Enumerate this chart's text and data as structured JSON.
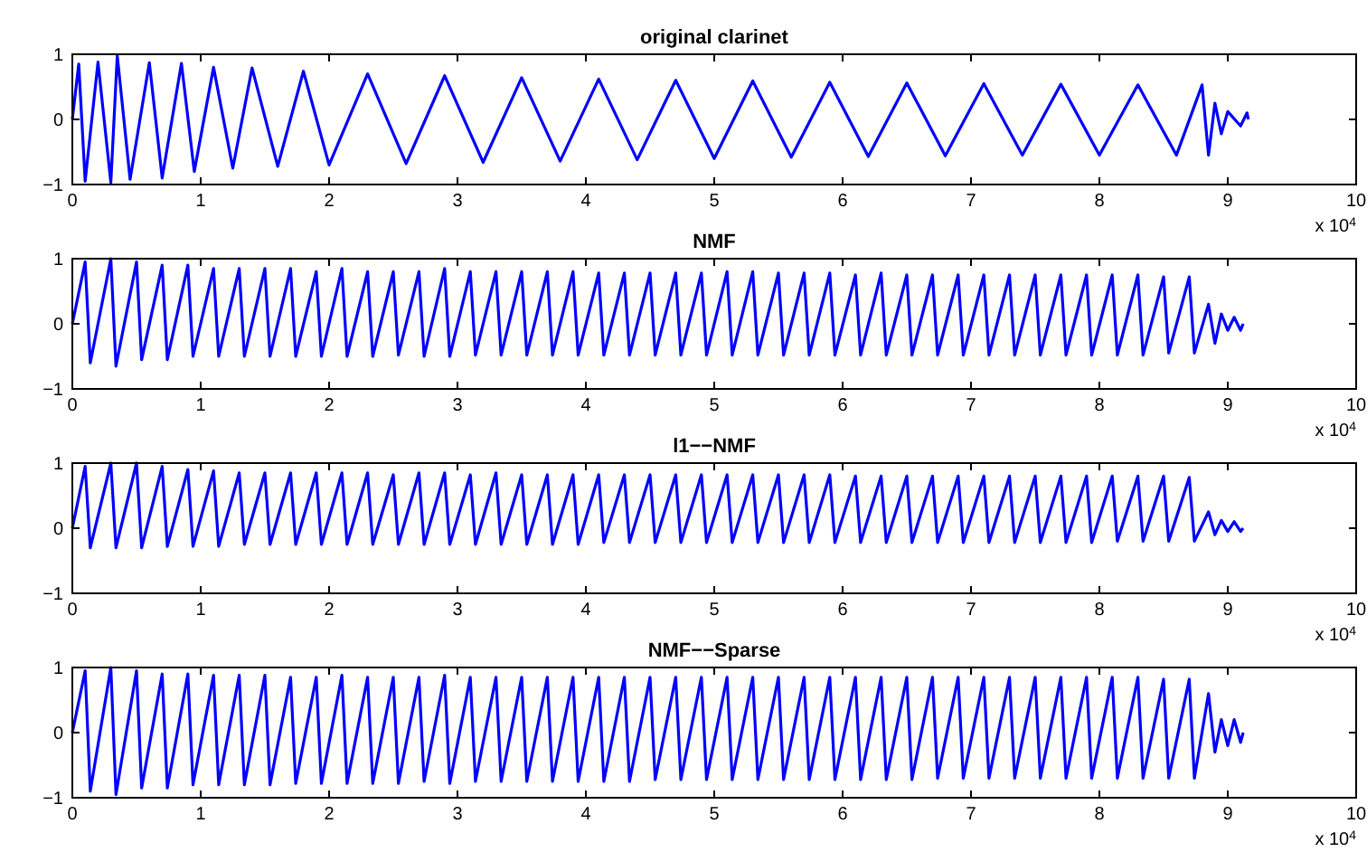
{
  "chart_data": [
    {
      "type": "line",
      "title": "original clarinet",
      "annotations": [
        "x 10$^{4}$"
      ],
      "xlim": [
        0,
        10
      ],
      "ylim": [
        -1,
        1
      ],
      "xticks": [
        0,
        1,
        2,
        3,
        4,
        5,
        6,
        7,
        8,
        9,
        10
      ],
      "yticks": [
        -1,
        0,
        1
      ],
      "x": [
        0,
        0.05,
        0.1,
        0.2,
        0.3,
        0.35,
        0.45,
        0.6,
        0.7,
        0.85,
        0.95,
        1.1,
        1.25,
        1.4,
        1.6,
        1.8,
        2,
        2.3,
        2.6,
        2.9,
        3.2,
        3.5,
        3.8,
        4.1,
        4.4,
        4.7,
        5,
        5.3,
        5.6,
        5.9,
        6.2,
        6.5,
        6.8,
        7.1,
        7.4,
        7.7,
        8,
        8.3,
        8.6,
        8.8,
        8.85,
        8.9,
        8.95,
        9,
        9.1,
        9.15,
        9.16
      ],
      "series": [
        {
          "color": "#0000ff",
          "values": [
            0,
            0.85,
            -0.95,
            0.88,
            -0.97,
            0.98,
            -0.92,
            0.87,
            -0.9,
            0.86,
            -0.8,
            0.8,
            -0.75,
            0.79,
            -0.72,
            0.74,
            -0.7,
            0.7,
            -0.68,
            0.67,
            -0.66,
            0.64,
            -0.64,
            0.62,
            -0.62,
            0.6,
            -0.6,
            0.59,
            -0.58,
            0.57,
            -0.57,
            0.56,
            -0.56,
            0.55,
            -0.55,
            0.54,
            -0.55,
            0.53,
            -0.55,
            0.53,
            -0.55,
            0.25,
            -0.22,
            0.12,
            -0.1,
            0.1,
            0
          ]
        }
      ]
    },
    {
      "type": "line",
      "title": "NMF",
      "annotations": [
        "x 10$^{4}$"
      ],
      "xlim": [
        0,
        10
      ],
      "ylim": [
        -1,
        1
      ],
      "xticks": [
        0,
        1,
        2,
        3,
        4,
        5,
        6,
        7,
        8,
        9,
        10
      ],
      "yticks": [
        -1,
        0,
        1
      ],
      "x": [
        0,
        0.1,
        0.14,
        0.3,
        0.34,
        0.5,
        0.54,
        0.7,
        0.74,
        0.9,
        0.94,
        1.1,
        1.14,
        1.3,
        1.34,
        1.5,
        1.54,
        1.7,
        1.74,
        1.9,
        1.94,
        2.1,
        2.14,
        2.3,
        2.34,
        2.5,
        2.54,
        2.7,
        2.74,
        2.9,
        2.94,
        3.1,
        3.14,
        3.3,
        3.34,
        3.5,
        3.54,
        3.7,
        3.74,
        3.9,
        3.94,
        4.1,
        4.14,
        4.3,
        4.34,
        4.5,
        4.54,
        4.7,
        4.74,
        4.9,
        4.94,
        5.1,
        5.14,
        5.3,
        5.34,
        5.5,
        5.54,
        5.7,
        5.74,
        5.9,
        5.94,
        6.1,
        6.14,
        6.3,
        6.34,
        6.5,
        6.54,
        6.7,
        6.74,
        6.9,
        6.94,
        7.1,
        7.14,
        7.3,
        7.34,
        7.5,
        7.54,
        7.7,
        7.74,
        7.9,
        7.94,
        8.1,
        8.14,
        8.3,
        8.34,
        8.5,
        8.54,
        8.7,
        8.74,
        8.85,
        8.9,
        8.95,
        9,
        9.05,
        9.1,
        9.12
      ],
      "series": [
        {
          "color": "#0000ff",
          "values": [
            0,
            0.95,
            -0.6,
            1.0,
            -0.65,
            0.95,
            -0.55,
            0.9,
            -0.55,
            0.9,
            -0.5,
            0.85,
            -0.5,
            0.85,
            -0.5,
            0.85,
            -0.5,
            0.85,
            -0.5,
            0.8,
            -0.5,
            0.85,
            -0.5,
            0.8,
            -0.5,
            0.8,
            -0.48,
            0.8,
            -0.5,
            0.85,
            -0.5,
            0.8,
            -0.48,
            0.8,
            -0.48,
            0.8,
            -0.48,
            0.8,
            -0.48,
            0.8,
            -0.48,
            0.78,
            -0.48,
            0.78,
            -0.48,
            0.78,
            -0.48,
            0.78,
            -0.48,
            0.78,
            -0.48,
            0.8,
            -0.48,
            0.8,
            -0.48,
            0.78,
            -0.48,
            0.78,
            -0.48,
            0.78,
            -0.48,
            0.75,
            -0.48,
            0.78,
            -0.48,
            0.75,
            -0.48,
            0.75,
            -0.48,
            0.75,
            -0.48,
            0.75,
            -0.48,
            0.75,
            -0.48,
            0.75,
            -0.48,
            0.75,
            -0.48,
            0.75,
            -0.48,
            0.75,
            -0.48,
            0.75,
            -0.48,
            0.72,
            -0.45,
            0.72,
            -0.45,
            0.3,
            -0.3,
            0.15,
            -0.1,
            0.1,
            -0.1,
            0
          ]
        }
      ]
    },
    {
      "type": "line",
      "title": "l1−−NMF",
      "annotations": [
        "x 10$^{4}$"
      ],
      "xlim": [
        0,
        10
      ],
      "ylim": [
        -1,
        1
      ],
      "xticks": [
        0,
        1,
        2,
        3,
        4,
        5,
        6,
        7,
        8,
        9,
        10
      ],
      "yticks": [
        -1,
        0,
        1
      ],
      "x": [
        0,
        0.1,
        0.14,
        0.3,
        0.34,
        0.5,
        0.54,
        0.7,
        0.74,
        0.9,
        0.94,
        1.1,
        1.14,
        1.3,
        1.34,
        1.5,
        1.54,
        1.7,
        1.74,
        1.9,
        1.94,
        2.1,
        2.14,
        2.3,
        2.34,
        2.5,
        2.54,
        2.7,
        2.74,
        2.9,
        2.94,
        3.1,
        3.14,
        3.3,
        3.34,
        3.5,
        3.54,
        3.7,
        3.74,
        3.9,
        3.94,
        4.1,
        4.14,
        4.3,
        4.34,
        4.5,
        4.54,
        4.7,
        4.74,
        4.9,
        4.94,
        5.1,
        5.14,
        5.3,
        5.34,
        5.5,
        5.54,
        5.7,
        5.74,
        5.9,
        5.94,
        6.1,
        6.14,
        6.3,
        6.34,
        6.5,
        6.54,
        6.7,
        6.74,
        6.9,
        6.94,
        7.1,
        7.14,
        7.3,
        7.34,
        7.5,
        7.54,
        7.7,
        7.74,
        7.9,
        7.94,
        8.1,
        8.14,
        8.3,
        8.34,
        8.5,
        8.54,
        8.7,
        8.74,
        8.85,
        8.9,
        8.95,
        9,
        9.05,
        9.1,
        9.12
      ],
      "series": [
        {
          "color": "#0000ff",
          "values": [
            0,
            0.95,
            -0.3,
            1.0,
            -0.3,
            1.0,
            -0.3,
            0.95,
            -0.28,
            0.9,
            -0.28,
            0.88,
            -0.28,
            0.85,
            -0.25,
            0.85,
            -0.25,
            0.85,
            -0.25,
            0.85,
            -0.25,
            0.85,
            -0.25,
            0.85,
            -0.25,
            0.82,
            -0.25,
            0.85,
            -0.25,
            0.85,
            -0.25,
            0.82,
            -0.25,
            0.85,
            -0.25,
            0.82,
            -0.25,
            0.82,
            -0.25,
            0.82,
            -0.25,
            0.82,
            -0.22,
            0.82,
            -0.22,
            0.82,
            -0.22,
            0.82,
            -0.22,
            0.82,
            -0.22,
            0.82,
            -0.22,
            0.82,
            -0.22,
            0.82,
            -0.22,
            0.82,
            -0.22,
            0.82,
            -0.22,
            0.8,
            -0.22,
            0.8,
            -0.22,
            0.8,
            -0.22,
            0.8,
            -0.22,
            0.8,
            -0.22,
            0.8,
            -0.22,
            0.8,
            -0.22,
            0.8,
            -0.22,
            0.8,
            -0.22,
            0.8,
            -0.22,
            0.8,
            -0.2,
            0.8,
            -0.2,
            0.8,
            -0.2,
            0.78,
            -0.2,
            0.25,
            -0.1,
            0.12,
            -0.05,
            0.1,
            -0.05,
            0
          ]
        }
      ]
    },
    {
      "type": "line",
      "title": "NMF−−Sparse",
      "annotations": [
        "x 10$^{4}$"
      ],
      "xlim": [
        0,
        10
      ],
      "ylim": [
        -1,
        1
      ],
      "xticks": [
        0,
        1,
        2,
        3,
        4,
        5,
        6,
        7,
        8,
        9,
        10
      ],
      "yticks": [
        -1,
        0,
        1
      ],
      "x": [
        0,
        0.1,
        0.14,
        0.3,
        0.34,
        0.5,
        0.54,
        0.7,
        0.74,
        0.9,
        0.94,
        1.1,
        1.14,
        1.3,
        1.34,
        1.5,
        1.54,
        1.7,
        1.74,
        1.9,
        1.94,
        2.1,
        2.14,
        2.3,
        2.34,
        2.5,
        2.54,
        2.7,
        2.74,
        2.9,
        2.94,
        3.1,
        3.14,
        3.3,
        3.34,
        3.5,
        3.54,
        3.7,
        3.74,
        3.9,
        3.94,
        4.1,
        4.14,
        4.3,
        4.34,
        4.5,
        4.54,
        4.7,
        4.74,
        4.9,
        4.94,
        5.1,
        5.14,
        5.3,
        5.34,
        5.5,
        5.54,
        5.7,
        5.74,
        5.9,
        5.94,
        6.1,
        6.14,
        6.3,
        6.34,
        6.5,
        6.54,
        6.7,
        6.74,
        6.9,
        6.94,
        7.1,
        7.14,
        7.3,
        7.34,
        7.5,
        7.54,
        7.7,
        7.74,
        7.9,
        7.94,
        8.1,
        8.14,
        8.3,
        8.34,
        8.5,
        8.54,
        8.7,
        8.74,
        8.85,
        8.9,
        8.95,
        9,
        9.05,
        9.1,
        9.12
      ],
      "series": [
        {
          "color": "#0000ff",
          "values": [
            0,
            0.95,
            -0.9,
            1.0,
            -0.95,
            0.95,
            -0.85,
            0.9,
            -0.85,
            0.9,
            -0.8,
            0.88,
            -0.8,
            0.88,
            -0.8,
            0.88,
            -0.8,
            0.85,
            -0.78,
            0.85,
            -0.78,
            0.88,
            -0.78,
            0.85,
            -0.78,
            0.85,
            -0.78,
            0.85,
            -0.75,
            0.88,
            -0.78,
            0.85,
            -0.75,
            0.85,
            -0.75,
            0.85,
            -0.75,
            0.85,
            -0.75,
            0.85,
            -0.75,
            0.85,
            -0.75,
            0.85,
            -0.75,
            0.85,
            -0.72,
            0.85,
            -0.72,
            0.85,
            -0.72,
            0.85,
            -0.72,
            0.85,
            -0.72,
            0.85,
            -0.72,
            0.85,
            -0.72,
            0.85,
            -0.72,
            0.85,
            -0.72,
            0.85,
            -0.72,
            0.85,
            -0.72,
            0.85,
            -0.7,
            0.85,
            -0.7,
            0.85,
            -0.7,
            0.85,
            -0.7,
            0.85,
            -0.7,
            0.85,
            -0.7,
            0.85,
            -0.7,
            0.85,
            -0.7,
            0.85,
            -0.7,
            0.82,
            -0.7,
            0.82,
            -0.7,
            0.6,
            -0.3,
            0.2,
            -0.2,
            0.2,
            -0.15,
            0
          ]
        }
      ]
    }
  ]
}
